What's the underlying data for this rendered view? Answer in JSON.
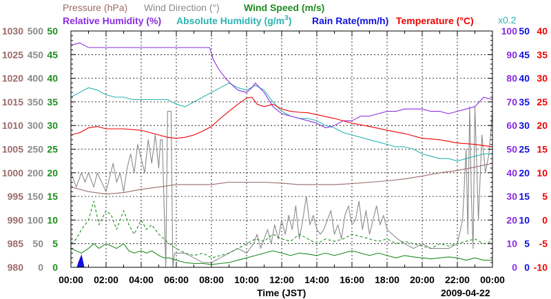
{
  "chart_data": {
    "type": "line",
    "date": "2009-04-22",
    "xlabel": "Time (JST)",
    "x_ticks": [
      "00:00",
      "02:00",
      "04:00",
      "06:00",
      "08:00",
      "10:00",
      "12:00",
      "14:00",
      "16:00",
      "18:00",
      "20:00",
      "22:00",
      "00:00"
    ],
    "xlim_hours": [
      0,
      24
    ],
    "legend": {
      "row1": [
        {
          "key": "pressure",
          "label": "Pressure (hPa)",
          "color": "#9b6a6a"
        },
        {
          "key": "wind_dir",
          "label": "Wind Direction (°)",
          "color": "#8a8a8a"
        },
        {
          "key": "wind_speed",
          "label": "Wind Speed (m/s)",
          "color": "#1e8c1e"
        }
      ],
      "row2": [
        {
          "key": "rel_hum",
          "label": "Relative Humidity (%)",
          "color": "#8a2be2"
        },
        {
          "key": "abs_hum_pre",
          "label": "Absolute Humidity (g/m",
          "color": "#2ab3b3"
        },
        {
          "key": "abs_hum_sup",
          "label": "3",
          "color": "#2ab3b3"
        },
        {
          "key": "abs_hum_post",
          "label": ")",
          "color": "#2ab3b3"
        },
        {
          "key": "rain",
          "label": "Rain Rate(mm/h)",
          "color": "#1010e0"
        },
        {
          "key": "temp",
          "label": "Temperature (°C)",
          "color": "#ee0000"
        }
      ],
      "scale_note": "x0.2",
      "scale_note_color": "#2ab3b3"
    },
    "axes": {
      "pressure": {
        "color": "#9b6a6a",
        "ticks": [
          "1030",
          "1025",
          "1020",
          "1015",
          "1010",
          "1005",
          "1000",
          "995",
          "990",
          "985",
          "980"
        ],
        "range": [
          980,
          1030
        ]
      },
      "wind_dir": {
        "color": "#8a8a8a",
        "ticks": [
          "500",
          "450",
          "400",
          "350",
          "300",
          "250",
          "200",
          "150",
          "100",
          "50",
          "0"
        ],
        "range": [
          0,
          500
        ]
      },
      "wind_speed": {
        "color": "#1e8c1e",
        "ticks": [
          "50",
          "45",
          "40",
          "35",
          "30",
          "25",
          "20",
          "15",
          "10",
          "5",
          "0"
        ],
        "range": [
          0,
          50
        ]
      },
      "rel_hum": {
        "color": "#8a2be2",
        "ticks": [
          "100",
          "90",
          "80",
          "70",
          "60",
          "50",
          "40",
          "30",
          "20",
          "10",
          "0"
        ],
        "range": [
          0,
          100
        ]
      },
      "rain": {
        "color": "#1010e0",
        "ticks": [
          "50",
          "45",
          "40",
          "35",
          "30",
          "25",
          "20",
          "15",
          "10",
          "5",
          "0"
        ],
        "range": [
          0,
          50
        ]
      },
      "temp": {
        "color": "#ee0000",
        "ticks": [
          "40",
          "35",
          "30",
          "25",
          "20",
          "15",
          "10",
          "5",
          "0",
          "-5",
          "-10"
        ],
        "range": [
          -10,
          40
        ]
      }
    },
    "series": [
      {
        "name": "Relative Humidity",
        "unit": "%",
        "color": "#8a2be2",
        "axis": "rel_hum",
        "dash": "",
        "x": [
          0,
          0.5,
          1,
          2,
          3,
          4,
          5,
          6,
          7,
          7.5,
          7.9,
          8.1,
          8.4,
          8.8,
          9.2,
          9.5,
          10,
          10.3,
          10.5,
          11,
          11.5,
          12,
          12.5,
          13,
          13.5,
          14,
          14.5,
          15,
          15.5,
          16,
          16.5,
          17,
          17.5,
          18,
          18.5,
          19,
          19.5,
          20,
          20.5,
          21,
          21.5,
          22,
          22.5,
          23,
          23.5,
          24
        ],
        "y": [
          94,
          95,
          93,
          93,
          93,
          93,
          93,
          93,
          93,
          93,
          93,
          88,
          84,
          80,
          77,
          75,
          74,
          76,
          78,
          74,
          68,
          65,
          64,
          63,
          62,
          61,
          59,
          60,
          62,
          62,
          64,
          64,
          65,
          66,
          66,
          67,
          67,
          67,
          66,
          66,
          65,
          66,
          67,
          68,
          72,
          71
        ]
      },
      {
        "name": "Absolute Humidity x0.2",
        "unit": "g/m3",
        "color": "#2ab3b3",
        "axis": "rel_hum",
        "dash": "",
        "x": [
          0,
          0.5,
          1,
          1.5,
          2,
          2.5,
          3,
          3.5,
          4,
          4.5,
          5,
          5.5,
          6,
          6.5,
          7,
          7.5,
          8,
          8.5,
          9,
          9.5,
          10,
          10.5,
          11,
          11.5,
          12,
          12.5,
          13,
          13.5,
          14,
          14.5,
          15,
          15.5,
          16,
          16.5,
          17,
          17.5,
          18,
          18.5,
          19,
          19.5,
          20,
          20.5,
          21,
          21.5,
          22,
          22.5,
          23,
          23.5,
          24
        ],
        "y": [
          72,
          74,
          76,
          75,
          73,
          72,
          72,
          71,
          71,
          71,
          71,
          71,
          69,
          68,
          70,
          72,
          74,
          76,
          78,
          76,
          75,
          77,
          75,
          70,
          66,
          64,
          63,
          63,
          62,
          60,
          59,
          57,
          56,
          55,
          54,
          53,
          52,
          51,
          51,
          50,
          48,
          47,
          46,
          46,
          45,
          46,
          47,
          48,
          48
        ]
      },
      {
        "name": "Temperature",
        "unit": "°C",
        "color": "#ee0000",
        "axis": "temp",
        "dash": "",
        "x": [
          0,
          0.5,
          1,
          1.5,
          2,
          3,
          4,
          5,
          5.5,
          6,
          6.5,
          7,
          7.5,
          8,
          8.5,
          9,
          9.5,
          10,
          10.3,
          10.6,
          11,
          11.5,
          12,
          12.5,
          13,
          13.5,
          14,
          15,
          16,
          17,
          18,
          19,
          20,
          21,
          22,
          23,
          24
        ],
        "y": [
          18.0,
          18.5,
          19.5,
          19.8,
          19.3,
          19.3,
          19.0,
          18.0,
          17.5,
          17.3,
          17.5,
          18.0,
          18.8,
          19.8,
          21.5,
          23.0,
          24.5,
          25.8,
          26.0,
          24.5,
          24.0,
          24.5,
          23.5,
          23.0,
          22.8,
          22.7,
          22.3,
          21.5,
          20.5,
          19.8,
          19.0,
          18.3,
          17.3,
          17.0,
          16.3,
          16.0,
          15.5
        ]
      },
      {
        "name": "Pressure",
        "unit": "hPa",
        "color": "#9b6a6a",
        "axis": "pressure",
        "dash": "",
        "x": [
          0,
          0.5,
          1,
          2,
          3,
          4,
          5,
          6,
          7,
          8,
          9,
          10,
          11,
          12,
          13,
          14,
          15,
          16,
          17,
          18,
          19,
          20,
          21,
          22,
          23,
          24
        ],
        "y": [
          997.0,
          996.5,
          996.0,
          995.5,
          995.8,
          996.5,
          997.0,
          997.5,
          997.5,
          997.5,
          998.0,
          998.0,
          998.0,
          997.8,
          997.5,
          997.5,
          997.5,
          997.7,
          998.0,
          998.3,
          998.7,
          999.3,
          1000.0,
          1000.5,
          1001.2,
          1002.0
        ]
      },
      {
        "name": "Wind Direction",
        "unit": "°",
        "color": "#8a8a8a",
        "axis": "wind_dir",
        "dash": "",
        "x": [
          0,
          0.3,
          0.6,
          0.8,
          1.0,
          1.3,
          1.5,
          2.0,
          2.2,
          2.4,
          2.6,
          2.8,
          3.0,
          3.2,
          3.4,
          3.6,
          3.8,
          4.0,
          4.2,
          4.4,
          4.6,
          4.8,
          5.0,
          5.1,
          5.2,
          5.4,
          5.5,
          5.6,
          5.7,
          5.8,
          5.9,
          6.0,
          6.2,
          6.5,
          7.0,
          7.5,
          8.0,
          8.5,
          9.0,
          9.5,
          10.0,
          10.2,
          10.4,
          10.6,
          10.8,
          11.0,
          11.2,
          11.4,
          11.6,
          11.8,
          12.0,
          12.2,
          12.4,
          12.6,
          12.8,
          13.0,
          13.2,
          13.4,
          13.6,
          13.8,
          14.0,
          14.2,
          14.4,
          14.6,
          14.8,
          15.0,
          15.2,
          15.4,
          15.6,
          15.8,
          16.0,
          16.2,
          16.4,
          16.6,
          16.8,
          17.0,
          17.2,
          17.4,
          17.6,
          17.8,
          18.0,
          18.3,
          18.6,
          19.0,
          19.5,
          20.0,
          20.5,
          21.0,
          21.5,
          22.0,
          22.3,
          22.5,
          22.6,
          22.7,
          22.8,
          22.9,
          23.0,
          23.2,
          23.4,
          23.6,
          23.8,
          24.0
        ],
        "y": [
          200,
          170,
          200,
          180,
          200,
          170,
          200,
          160,
          190,
          220,
          180,
          200,
          160,
          210,
          240,
          200,
          260,
          230,
          200,
          270,
          220,
          280,
          210,
          270,
          270,
          0,
          330,
          330,
          330,
          0,
          30,
          30,
          30,
          30,
          20,
          10,
          10,
          20,
          30,
          40,
          30,
          40,
          50,
          70,
          40,
          60,
          80,
          50,
          90,
          60,
          100,
          70,
          110,
          80,
          130,
          60,
          100,
          150,
          90,
          110,
          80,
          70,
          80,
          100,
          120,
          70,
          90,
          60,
          110,
          130,
          90,
          100,
          140,
          80,
          120,
          70,
          100,
          130,
          90,
          110,
          80,
          70,
          60,
          50,
          40,
          50,
          40,
          40,
          40,
          50,
          100,
          250,
          70,
          340,
          150,
          40,
          340,
          100,
          280,
          200,
          240,
          330
        ]
      },
      {
        "name": "Wind Speed (max)",
        "unit": "m/s",
        "color": "#1e8c1e",
        "axis": "wind_speed",
        "dash": "4,3",
        "x": [
          0,
          0.3,
          0.6,
          1.0,
          1.3,
          1.6,
          2.0,
          2.3,
          2.6,
          3.0,
          3.3,
          3.6,
          4.0,
          4.3,
          4.6,
          5.0,
          5.3,
          5.6,
          6.0,
          6.5,
          7.0,
          7.5,
          8.0,
          8.5,
          9.0,
          9.5,
          10.0,
          10.5,
          11.0,
          11.5,
          12.0,
          12.5,
          13.0,
          13.5,
          14.0,
          14.5,
          15.0,
          15.5,
          16.0,
          16.5,
          17.0,
          17.5,
          18.0,
          18.5,
          19.0,
          19.5,
          20.0,
          20.5,
          21.0,
          21.5,
          22.0,
          22.5,
          23.0,
          23.5,
          24.0
        ],
        "y": [
          5,
          6,
          8,
          10,
          14,
          9,
          12,
          11,
          8,
          12,
          9,
          7,
          10,
          8,
          9,
          7,
          6,
          5,
          4,
          3,
          2.5,
          3,
          2,
          2.5,
          3,
          4,
          5,
          6,
          5.5,
          7,
          6,
          5.5,
          7,
          6,
          5,
          6,
          5.5,
          6,
          7,
          6.5,
          6,
          5.5,
          6,
          5,
          5.5,
          5,
          4.5,
          4,
          5,
          4.5,
          5,
          5.5,
          6,
          5,
          5.5
        ]
      },
      {
        "name": "Wind Speed (mean)",
        "unit": "m/s",
        "color": "#1e8c1e",
        "axis": "wind_speed",
        "dash": "",
        "x": [
          0,
          0.3,
          0.6,
          1.0,
          1.3,
          1.6,
          2.0,
          2.3,
          2.6,
          3.0,
          3.3,
          3.6,
          4.0,
          4.3,
          4.6,
          5.0,
          5.3,
          5.6,
          6.0,
          6.5,
          7.0,
          7.5,
          8.0,
          8.5,
          9.0,
          9.5,
          10.0,
          10.5,
          11.0,
          11.5,
          12.0,
          12.5,
          13.0,
          13.5,
          14.0,
          14.5,
          15.0,
          15.5,
          16.0,
          16.5,
          17.0,
          17.5,
          18.0,
          18.5,
          19.0,
          19.5,
          20.0,
          20.5,
          21.0,
          21.5,
          22.0,
          22.5,
          23.0,
          23.5,
          24.0
        ],
        "y": [
          4,
          3.5,
          3,
          4,
          5,
          4,
          5,
          4.5,
          4,
          5,
          3.5,
          3,
          3.5,
          3,
          3.5,
          2.5,
          2,
          2,
          1.5,
          1,
          0.8,
          0.8,
          0.6,
          0.8,
          1.0,
          1.5,
          2.0,
          2.5,
          3,
          3.5,
          3,
          2.5,
          3,
          2.8,
          2.5,
          3,
          2.5,
          3,
          3.5,
          3,
          2.5,
          3,
          2.5,
          2,
          2.5,
          2.2,
          2,
          1.8,
          2,
          2.2,
          2,
          1.5,
          2,
          1.5,
          1.5
        ]
      },
      {
        "name": "Rain Rate",
        "unit": "mm/h",
        "color": "#1010e0",
        "axis": "rain",
        "dash": "",
        "x": [
          0,
          0.35,
          0.45,
          0.6,
          0.75,
          24
        ],
        "y": [
          0,
          0,
          1.2,
          2.5,
          0,
          0
        ]
      }
    ]
  }
}
